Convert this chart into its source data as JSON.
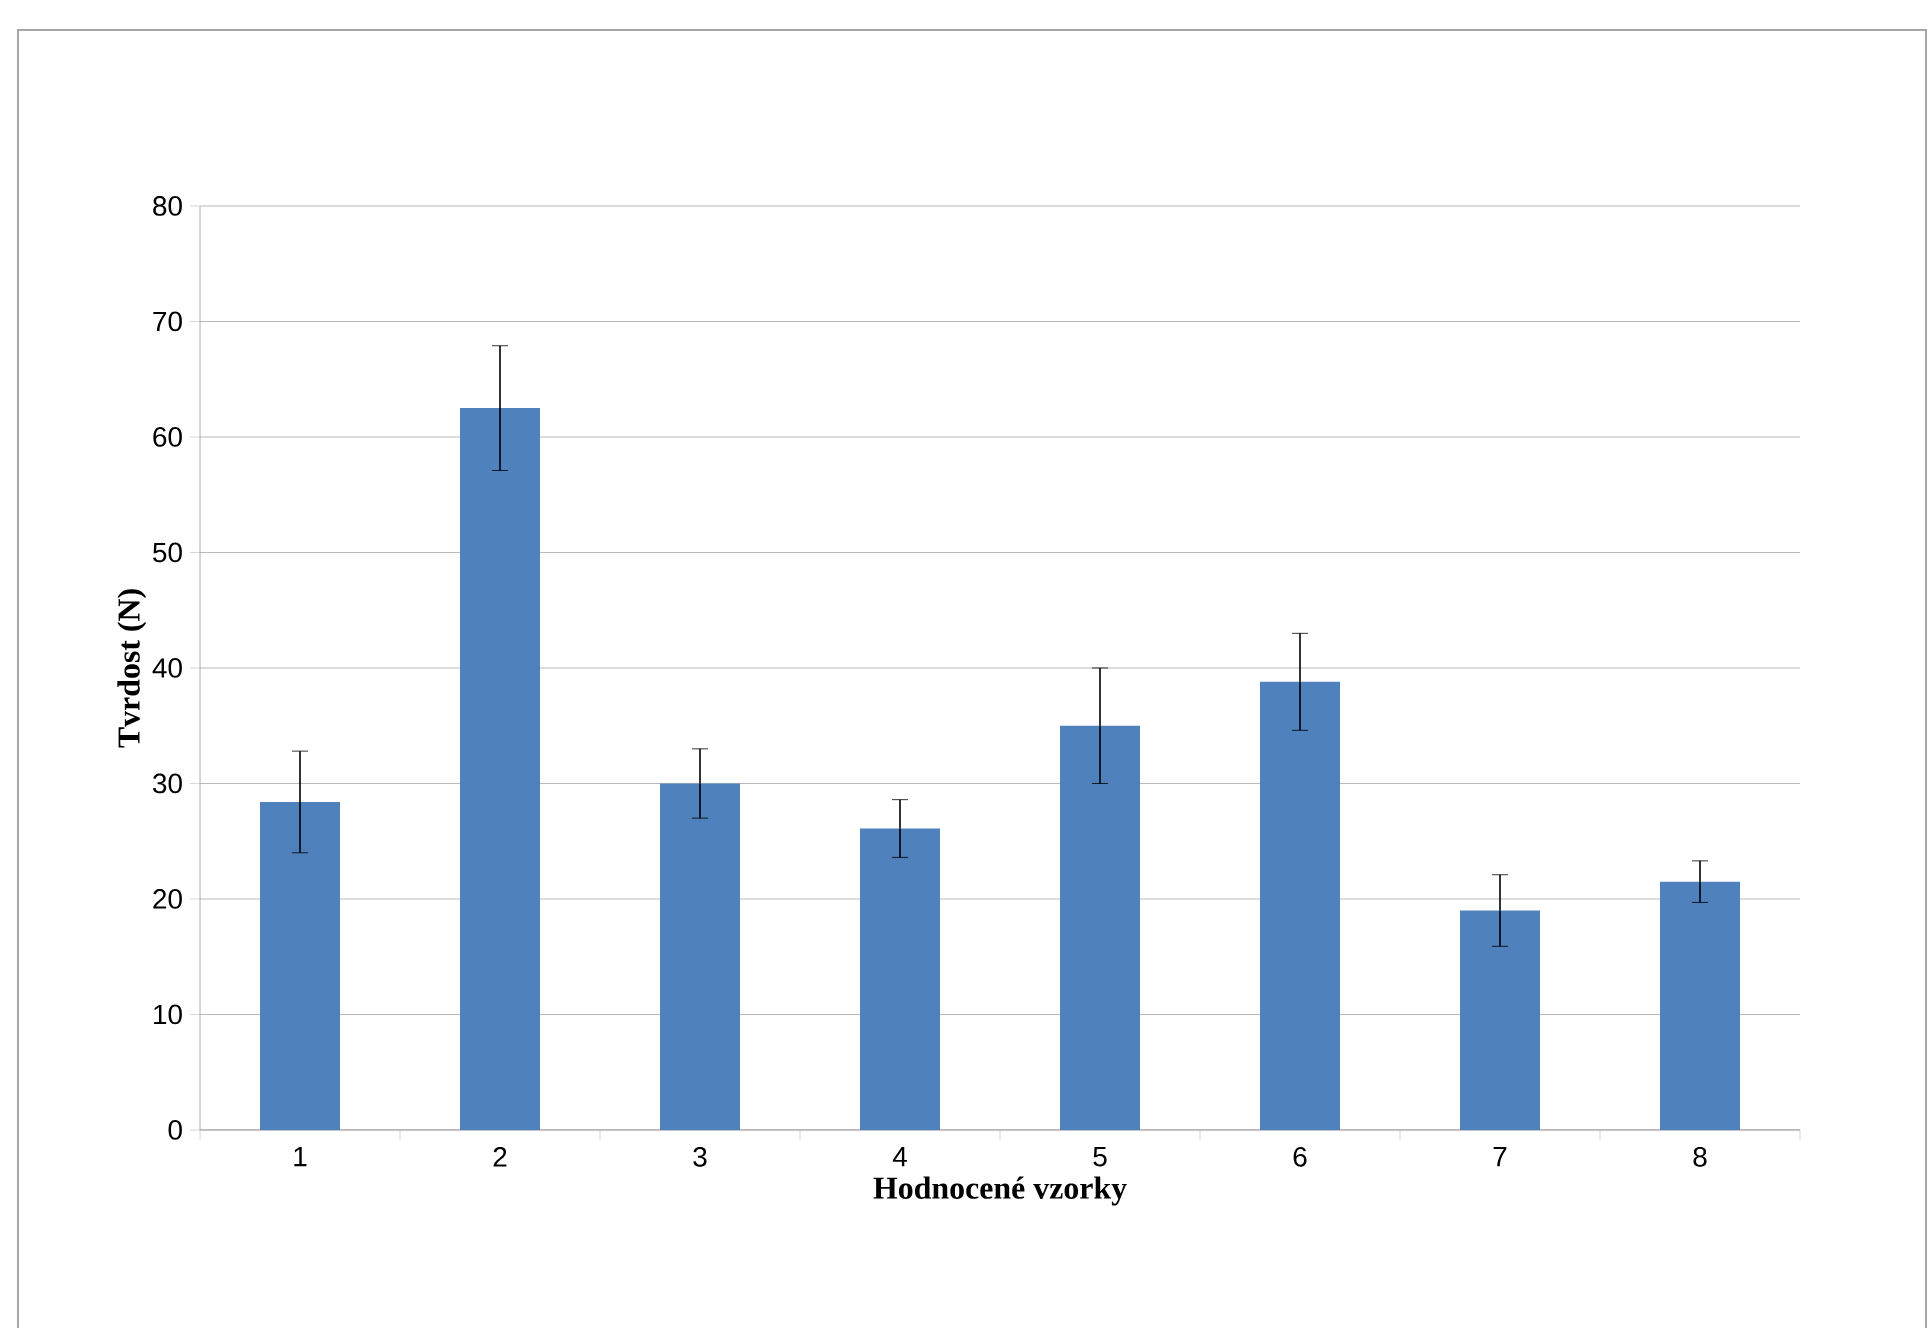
{
  "chart_data": {
    "type": "bar",
    "xlabel": "Hodnocené vzorky",
    "ylabel": "Tvrdost (N)",
    "categories": [
      "1",
      "2",
      "3",
      "4",
      "5",
      "6",
      "7",
      "8"
    ],
    "values": [
      28.4,
      62.5,
      30.0,
      26.1,
      35.0,
      38.8,
      19.0,
      21.5
    ],
    "errors": [
      4.4,
      5.4,
      3.0,
      2.5,
      5.0,
      4.2,
      3.1,
      1.8
    ],
    "color": "#4f81bd",
    "ylim": [
      0,
      80
    ],
    "yticks": [
      0,
      10,
      20,
      30,
      40,
      50,
      60,
      70,
      80
    ],
    "grid": "y"
  }
}
